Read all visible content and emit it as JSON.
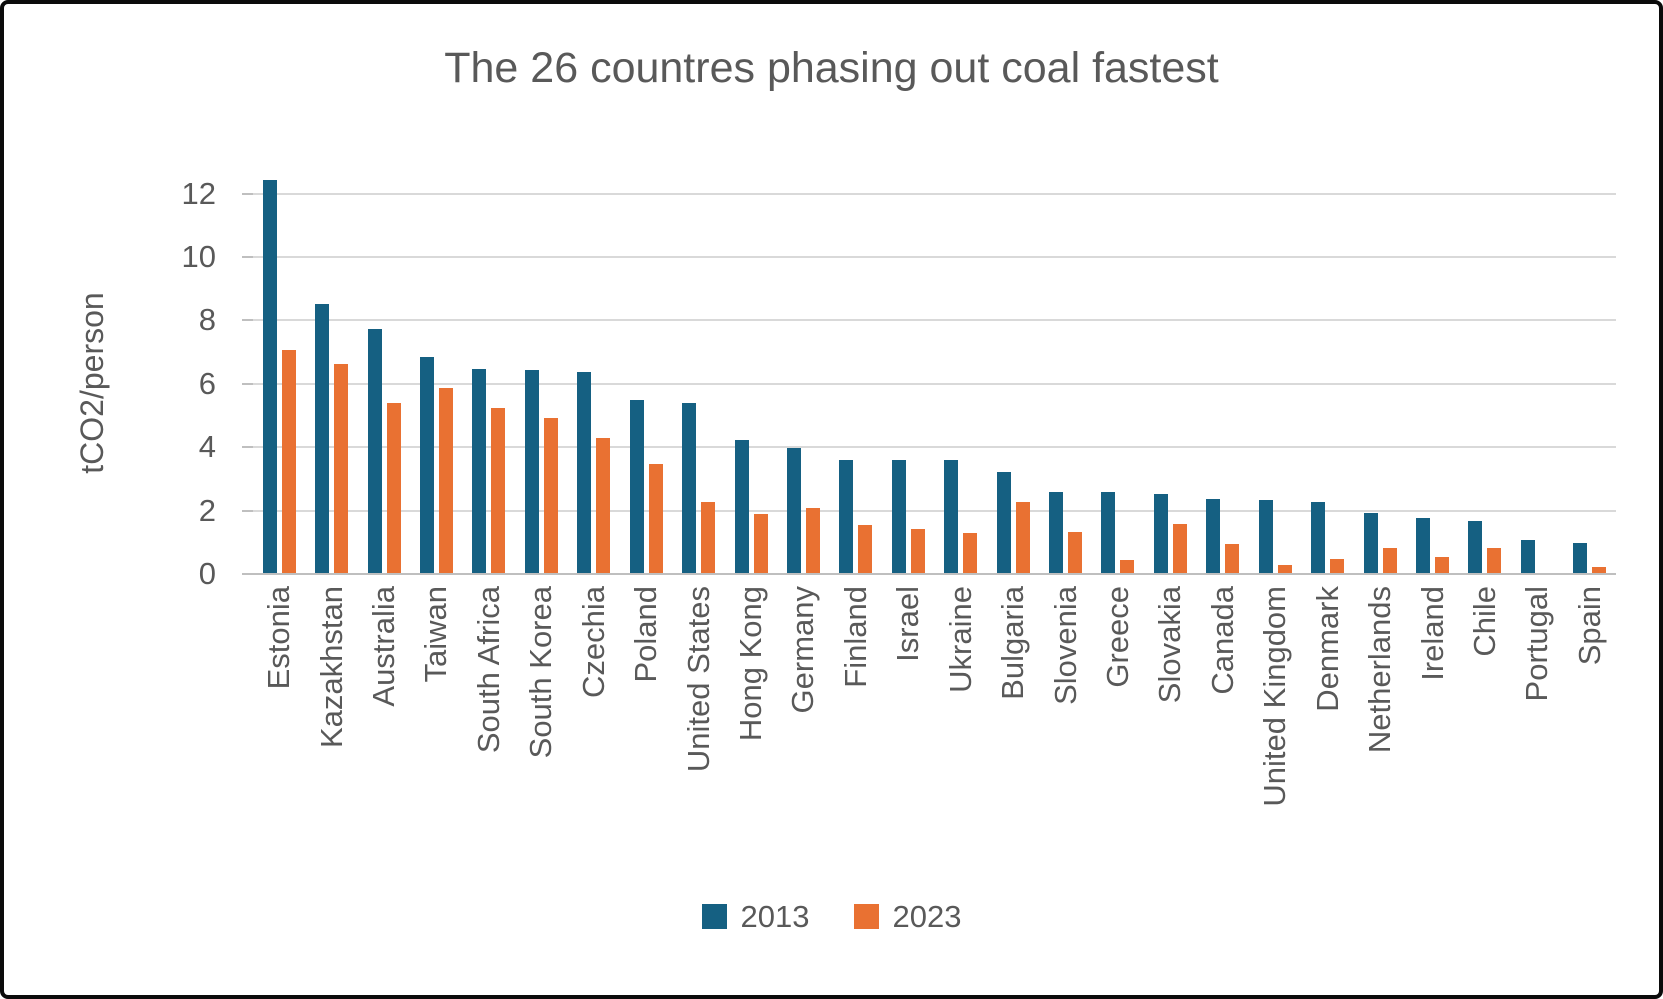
{
  "title": "The 26 countres phasing out coal fastest",
  "y_axis": {
    "label": "tCO2/person",
    "ticks": [
      "0",
      "2",
      "4",
      "6",
      "8",
      "10",
      "12"
    ],
    "max": 12,
    "step": 2
  },
  "colors": {
    "series_2013": "#156082",
    "series_2023": "#E97132",
    "gridline": "#d9d9d9",
    "zero_line": "#bfbfbf",
    "text": "#595959",
    "frame_border": "#0b0b0b"
  },
  "chart_data": {
    "type": "bar",
    "title": "The 26 countres phasing out coal fastest",
    "xlabel": "",
    "ylabel": "tCO2/person",
    "ylim": [
      0,
      12
    ],
    "grid": true,
    "legend_position": "bottom",
    "categories": [
      "Estonia",
      "Kazakhstan",
      "Australia",
      "Taiwan",
      "South Africa",
      "South Korea",
      "Czechia",
      "Poland",
      "United States",
      "Hong Kong",
      "Germany",
      "Finland",
      "Israel",
      "Ukraine",
      "Bulgaria",
      "Slovenia",
      "Greece",
      "Slovakia",
      "Canada",
      "United Kingdom",
      "Denmark",
      "Netherlands",
      "Ireland",
      "Chile",
      "Portugal",
      "Spain"
    ],
    "series": [
      {
        "name": "2013",
        "color": "#156082",
        "values": [
          12.4,
          8.5,
          7.7,
          6.8,
          6.45,
          6.4,
          6.35,
          5.45,
          5.35,
          4.2,
          3.95,
          3.55,
          3.55,
          3.55,
          3.2,
          2.55,
          2.55,
          2.5,
          2.35,
          2.3,
          2.25,
          1.9,
          1.75,
          1.65,
          1.05,
          0.95
        ]
      },
      {
        "name": "2023",
        "color": "#E97132",
        "values": [
          7.05,
          6.6,
          5.35,
          5.85,
          5.2,
          4.9,
          4.25,
          3.45,
          2.25,
          1.85,
          2.05,
          1.5,
          1.4,
          1.25,
          2.25,
          1.3,
          0.4,
          1.55,
          0.9,
          0.25,
          0.45,
          0.8,
          0.5,
          0.8,
          0,
          0.2
        ]
      }
    ]
  }
}
